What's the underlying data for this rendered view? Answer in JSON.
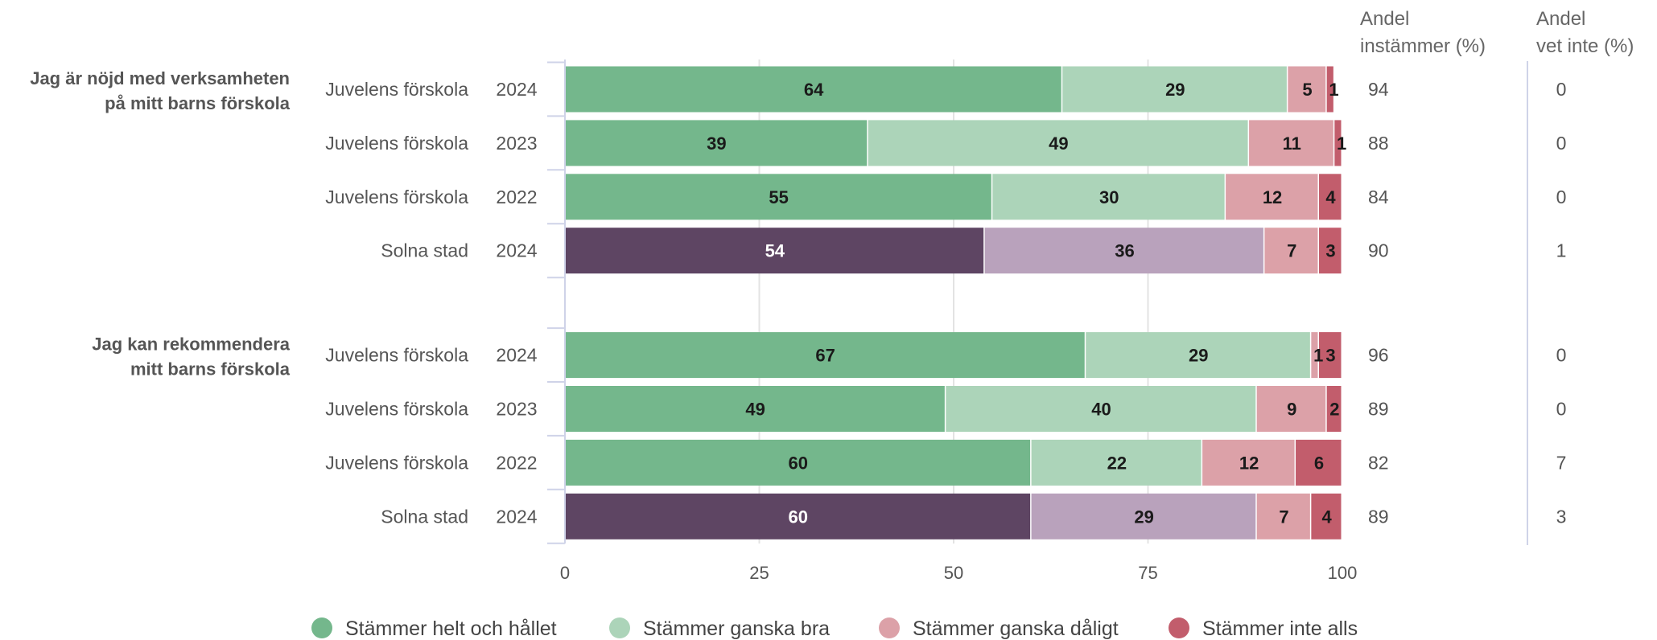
{
  "chart_data": {
    "type": "bar",
    "orientation": "horizontal",
    "stacked": true,
    "xlim": [
      0,
      100
    ],
    "x_ticks": [
      0,
      25,
      50,
      75,
      100
    ],
    "grid": true,
    "legend_position": "bottom",
    "columns": {
      "agree": {
        "title_lines": [
          "Andel",
          "instämmer (%)"
        ]
      },
      "dont_know": {
        "title_lines": [
          "Andel",
          "vet inte (%)"
        ]
      }
    },
    "categories": [
      "Stämmer helt och hållet",
      "Stämmer ganska bra",
      "Stämmer ganska dåligt",
      "Stämmer inte alls"
    ],
    "colors": {
      "primary": [
        "#74b78c",
        "#acd4b9",
        "#dca1a8",
        "#c25d6c"
      ],
      "comparison": [
        "#5e4563",
        "#b9a2bc",
        "#dca1a8",
        "#c25d6c"
      ],
      "label_dark": "#1a1a1a",
      "label_light": "#ffffff"
    },
    "groups": [
      {
        "label_lines": [
          "Jag är nöjd med verksamheten",
          "på mitt barns förskola"
        ],
        "rows": [
          {
            "unit": "Juvelens förskola",
            "year": "2024",
            "values": [
              64,
              29,
              5,
              1
            ],
            "agree": "94",
            "dont_know": "0",
            "palette": "primary"
          },
          {
            "unit": "Juvelens förskola",
            "year": "2023",
            "values": [
              39,
              49,
              11,
              1
            ],
            "agree": "88",
            "dont_know": "0",
            "palette": "primary"
          },
          {
            "unit": "Juvelens förskola",
            "year": "2022",
            "values": [
              55,
              30,
              12,
              4
            ],
            "agree": "84",
            "dont_know": "0",
            "palette": "primary"
          },
          {
            "unit": "Solna stad",
            "year": "2024",
            "values": [
              54,
              36,
              7,
              3
            ],
            "agree": "90",
            "dont_know": "1",
            "palette": "comparison"
          }
        ]
      },
      {
        "label_lines": [
          "Jag kan rekommendera",
          "mitt barns förskola"
        ],
        "rows": [
          {
            "unit": "Juvelens förskola",
            "year": "2024",
            "values": [
              67,
              29,
              1,
              3
            ],
            "agree": "96",
            "dont_know": "0",
            "palette": "primary"
          },
          {
            "unit": "Juvelens förskola",
            "year": "2023",
            "values": [
              49,
              40,
              9,
              2
            ],
            "agree": "89",
            "dont_know": "0",
            "palette": "primary"
          },
          {
            "unit": "Juvelens förskola",
            "year": "2022",
            "values": [
              60,
              22,
              12,
              6
            ],
            "agree": "82",
            "dont_know": "7",
            "palette": "primary"
          },
          {
            "unit": "Solna stad",
            "year": "2024",
            "values": [
              60,
              29,
              7,
              4
            ],
            "agree": "89",
            "dont_know": "3",
            "palette": "comparison"
          }
        ]
      }
    ]
  }
}
